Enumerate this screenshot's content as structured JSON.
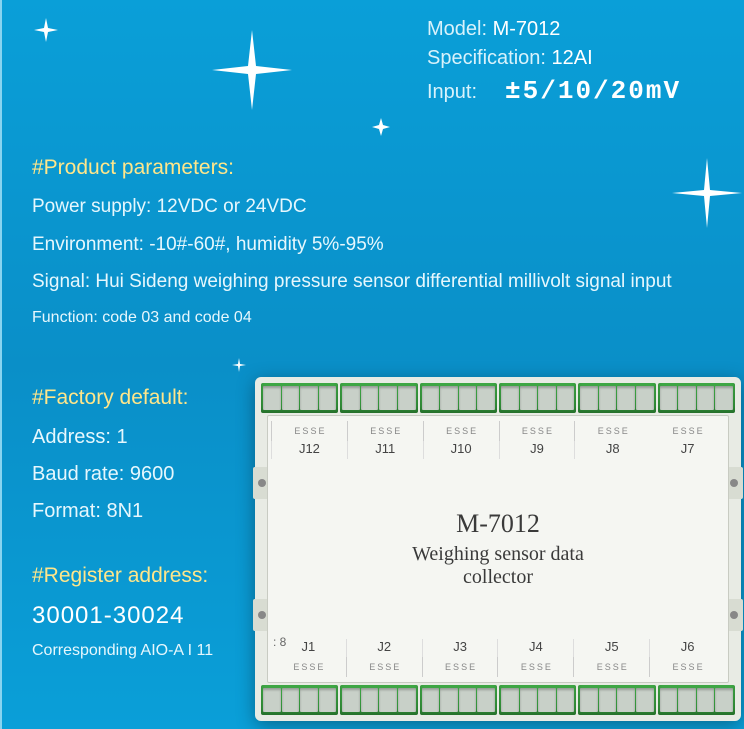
{
  "header": {
    "model_label": "Model:",
    "model_value": "M-7012",
    "spec_label": "Specification:",
    "spec_value": "12AI",
    "input_label": "Input:",
    "input_value": "±5/10/20mV"
  },
  "parameters": {
    "title": "#Product parameters:",
    "power": "Power supply: 12VDC or 24VDC",
    "environment": "Environment: -10#-60#, humidity 5%-95%",
    "signal": "Signal: Hui Sideng weighing pressure sensor differential millivolt signal input",
    "function": "Function: code 03 and code 04"
  },
  "factory": {
    "title": "#Factory default:",
    "address": "Address: 1",
    "baud": "Baud rate: 9600",
    "format": "Format: 8N1"
  },
  "register": {
    "title": "#Register address:",
    "range": "30001-30024",
    "note": "Corresponding AIO-A I 11"
  },
  "device": {
    "model": "M-7012",
    "title": "Weighing sensor data collector",
    "bottom_ports": [
      "J1",
      "J2",
      "J3",
      "J4",
      "J5",
      "J6"
    ],
    "top_ports": [
      "J7",
      "J8",
      "J9",
      "J10",
      "J11",
      "J12"
    ],
    "side_num": ": 8",
    "pin_labels": [
      "E",
      "S",
      "S",
      "E"
    ]
  },
  "colors": {
    "accent": "#ffe68a",
    "text": "#ffffff",
    "subtext": "#d8f2fb",
    "terminal": "#3fa845"
  }
}
